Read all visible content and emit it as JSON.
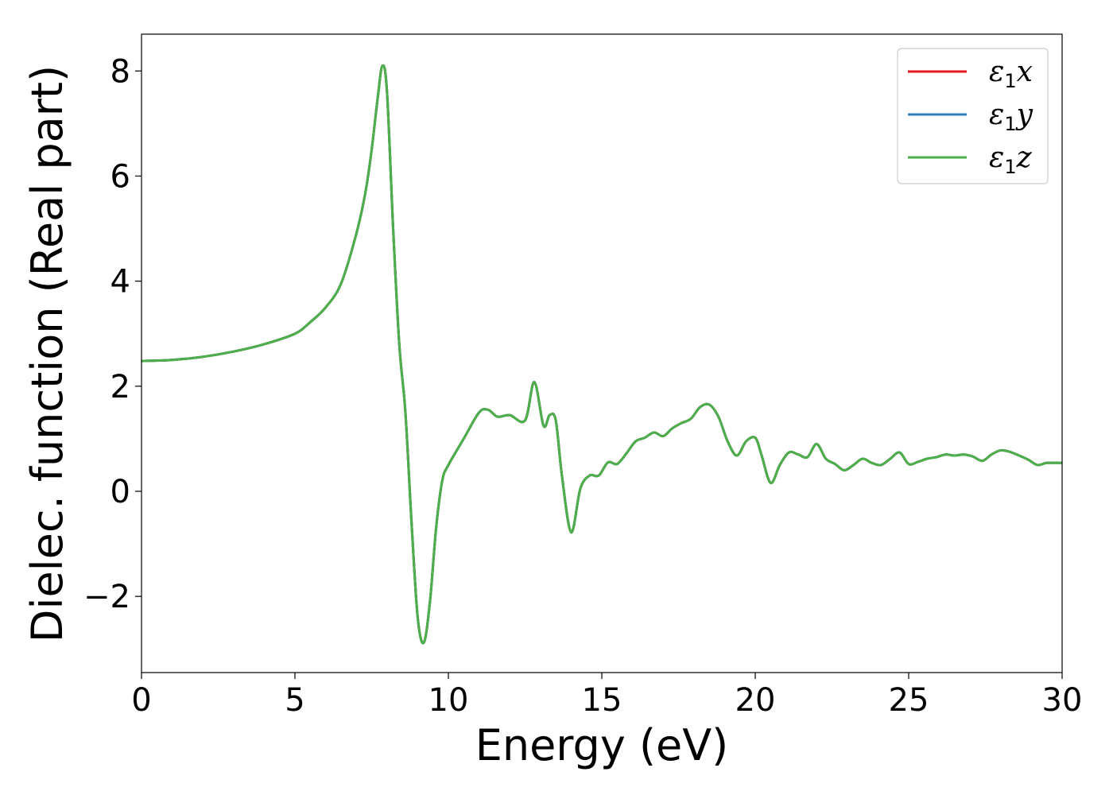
{
  "chart_data": {
    "type": "line",
    "title": "",
    "xlabel": "Energy (eV)",
    "ylabel": "Dielec. function (Real part)",
    "xlim": [
      0,
      30
    ],
    "ylim": [
      -3.45,
      8.7
    ],
    "xticks": [
      0,
      5,
      10,
      15,
      20,
      25,
      30
    ],
    "xtick_labels": [
      "0",
      "5",
      "10",
      "15",
      "20",
      "25",
      "30"
    ],
    "yticks": [
      -2,
      0,
      2,
      4,
      6,
      8
    ],
    "ytick_labels": [
      "−2",
      "0",
      "2",
      "4",
      "6",
      "8"
    ],
    "grid": false,
    "legend_position": "top-right",
    "x": [
      0,
      1,
      2,
      3,
      4,
      5,
      5.5,
      6,
      6.5,
      7,
      7.3,
      7.5,
      7.7,
      7.85,
      8.0,
      8.2,
      8.4,
      8.6,
      8.8,
      9.0,
      9.2,
      9.4,
      9.6,
      9.8,
      10.0,
      10.5,
      11.0,
      11.3,
      11.6,
      12.0,
      12.5,
      12.8,
      13.1,
      13.3,
      13.5,
      13.7,
      14.0,
      14.3,
      14.6,
      14.9,
      15.2,
      15.5,
      15.8,
      16.1,
      16.4,
      16.7,
      17.0,
      17.3,
      17.6,
      17.9,
      18.2,
      18.5,
      18.8,
      19.1,
      19.4,
      19.7,
      20.0,
      20.2,
      20.5,
      20.8,
      21.1,
      21.4,
      21.7,
      22.0,
      22.3,
      22.6,
      22.9,
      23.2,
      23.5,
      23.8,
      24.1,
      24.4,
      24.7,
      25.0,
      25.3,
      25.6,
      25.9,
      26.2,
      26.5,
      26.8,
      27.1,
      27.4,
      27.7,
      28.0,
      28.3,
      28.6,
      28.9,
      29.2,
      29.5,
      30.0
    ],
    "series": [
      {
        "name": "ε₁x",
        "color": "#e41a1c",
        "values": [
          2.48,
          2.5,
          2.56,
          2.66,
          2.8,
          3.0,
          3.22,
          3.5,
          3.95,
          4.9,
          5.7,
          6.5,
          7.5,
          8.1,
          7.6,
          5.0,
          2.8,
          1.5,
          -0.6,
          -2.4,
          -2.88,
          -2.1,
          -0.7,
          0.2,
          0.5,
          1.0,
          1.5,
          1.55,
          1.42,
          1.45,
          1.35,
          2.08,
          1.25,
          1.45,
          1.35,
          0.3,
          -0.78,
          0.05,
          0.3,
          0.3,
          0.55,
          0.52,
          0.72,
          0.95,
          1.02,
          1.12,
          1.05,
          1.2,
          1.3,
          1.38,
          1.6,
          1.65,
          1.42,
          0.95,
          0.68,
          0.95,
          1.02,
          0.7,
          0.16,
          0.5,
          0.74,
          0.7,
          0.65,
          0.9,
          0.62,
          0.52,
          0.4,
          0.5,
          0.62,
          0.54,
          0.5,
          0.62,
          0.74,
          0.52,
          0.56,
          0.62,
          0.65,
          0.7,
          0.68,
          0.7,
          0.66,
          0.58,
          0.7,
          0.78,
          0.75,
          0.68,
          0.6,
          0.5,
          0.54,
          0.54
        ]
      },
      {
        "name": "ε₁y",
        "color": "#377eb8",
        "values": [
          2.48,
          2.5,
          2.56,
          2.66,
          2.8,
          3.0,
          3.22,
          3.5,
          3.95,
          4.9,
          5.7,
          6.5,
          7.5,
          8.1,
          7.6,
          5.0,
          2.8,
          1.5,
          -0.6,
          -2.4,
          -2.88,
          -2.1,
          -0.7,
          0.2,
          0.5,
          1.0,
          1.5,
          1.55,
          1.42,
          1.45,
          1.35,
          2.08,
          1.25,
          1.45,
          1.35,
          0.3,
          -0.78,
          0.05,
          0.3,
          0.3,
          0.55,
          0.52,
          0.72,
          0.95,
          1.02,
          1.12,
          1.05,
          1.2,
          1.3,
          1.38,
          1.6,
          1.65,
          1.42,
          0.95,
          0.68,
          0.95,
          1.02,
          0.7,
          0.16,
          0.5,
          0.74,
          0.7,
          0.65,
          0.9,
          0.62,
          0.52,
          0.4,
          0.5,
          0.62,
          0.54,
          0.5,
          0.62,
          0.74,
          0.52,
          0.56,
          0.62,
          0.65,
          0.7,
          0.68,
          0.7,
          0.66,
          0.58,
          0.7,
          0.78,
          0.75,
          0.68,
          0.6,
          0.5,
          0.54,
          0.54
        ]
      },
      {
        "name": "ε₁z",
        "color": "#4daf4a",
        "values": [
          2.48,
          2.5,
          2.56,
          2.66,
          2.8,
          3.0,
          3.22,
          3.5,
          3.95,
          4.9,
          5.7,
          6.5,
          7.5,
          8.1,
          7.6,
          5.0,
          2.8,
          1.5,
          -0.6,
          -2.4,
          -2.88,
          -2.1,
          -0.7,
          0.2,
          0.5,
          1.0,
          1.5,
          1.55,
          1.42,
          1.45,
          1.35,
          2.08,
          1.25,
          1.45,
          1.35,
          0.3,
          -0.78,
          0.05,
          0.3,
          0.3,
          0.55,
          0.52,
          0.72,
          0.95,
          1.02,
          1.12,
          1.05,
          1.2,
          1.3,
          1.38,
          1.6,
          1.65,
          1.42,
          0.95,
          0.68,
          0.95,
          1.02,
          0.7,
          0.16,
          0.5,
          0.74,
          0.7,
          0.65,
          0.9,
          0.62,
          0.52,
          0.4,
          0.5,
          0.62,
          0.54,
          0.5,
          0.62,
          0.74,
          0.52,
          0.56,
          0.62,
          0.65,
          0.7,
          0.68,
          0.7,
          0.66,
          0.58,
          0.7,
          0.78,
          0.75,
          0.68,
          0.6,
          0.5,
          0.54,
          0.54
        ]
      }
    ]
  }
}
